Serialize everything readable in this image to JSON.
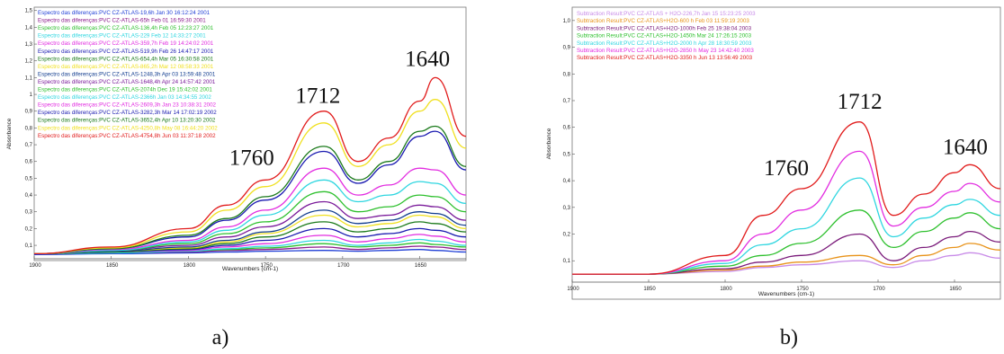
{
  "chart_data": [
    {
      "type": "line",
      "panel_label": "a)",
      "xlabel": "Wavenumbers (cm-1)",
      "ylabel": "Absorbance",
      "xlim": [
        1900,
        1620
      ],
      "ylim": [
        0.02,
        1.52
      ],
      "x_reversed": true,
      "xticks": [
        1900,
        1850,
        1800,
        1750,
        1700,
        1650
      ],
      "xtick_labels": [
        "1900",
        "1850",
        "1800",
        "1750",
        "1700",
        "1650"
      ],
      "yticks": [
        0.1,
        0.2,
        0.3,
        0.4,
        0.5,
        0.6,
        0.7,
        0.8,
        0.9,
        1.0,
        1.1,
        1.2,
        1.3,
        1.4,
        1.5
      ],
      "ytick_labels": [
        "0,1",
        "0,2",
        "0,3",
        "0,4",
        "0,5",
        "0,6",
        "0,7",
        "0,8",
        "0,9",
        "1",
        "1,1",
        "1,2",
        "1,3",
        "1,4",
        "1,5"
      ],
      "annotations": [
        {
          "text": "1760",
          "x": 1759,
          "y": 0.58
        },
        {
          "text": "1712",
          "x": 1716,
          "y": 0.95
        },
        {
          "text": "1640",
          "x": 1645,
          "y": 1.17
        }
      ],
      "series": [
        {
          "name": "Espectro das diferenças:PVC CZ-ATLAS-19,6h Jan 30 16:12:24 2001",
          "color": "#1f3fd6",
          "values": [
            0.045,
            0.05,
            0.055,
            0.06,
            0.065,
            0.07,
            0.065,
            0.07,
            0.075,
            0.07,
            0.06
          ]
        },
        {
          "name": "Espectro das diferenças:PVC CZ-ATLAS-65h  Feb 01 16:59:30 2001",
          "color": "#8b1a8b",
          "values": [
            0.05,
            0.055,
            0.06,
            0.07,
            0.075,
            0.09,
            0.075,
            0.085,
            0.095,
            0.09,
            0.075
          ]
        },
        {
          "name": "Espectro das diferenças:PVC CZ-ATLAS-136,4h  Feb 05 12:23:27 2001",
          "color": "#2ec02e",
          "values": [
            0.05,
            0.055,
            0.065,
            0.075,
            0.085,
            0.11,
            0.09,
            0.1,
            0.115,
            0.105,
            0.09
          ]
        },
        {
          "name": "Espectro das diferenças:PVC CZ-ATLAS-229 Feb 12 14:33:27 2001",
          "color": "#2fd6e0",
          "values": [
            0.05,
            0.055,
            0.065,
            0.08,
            0.095,
            0.13,
            0.1,
            0.115,
            0.135,
            0.125,
            0.1
          ]
        },
        {
          "name": "Espectro das diferenças:PVC CZ-ATLAS-359,7h Feb 19 14:24:02 2001",
          "color": "#e22ce0",
          "values": [
            0.05,
            0.06,
            0.07,
            0.09,
            0.11,
            0.16,
            0.12,
            0.14,
            0.165,
            0.155,
            0.12
          ]
        },
        {
          "name": "Espectro das diferenças:PVC CZ-ATLAS-519,9h Feb 26 14:47:17 2001",
          "color": "#1a1ab0",
          "values": [
            0.05,
            0.06,
            0.075,
            0.1,
            0.13,
            0.2,
            0.15,
            0.17,
            0.2,
            0.19,
            0.15
          ]
        },
        {
          "name": "Espectro das diferenças:PVC CZ-ATLAS-654,4h Mar 05 16:30:58 2001",
          "color": "#1b7a1b",
          "values": [
            0.05,
            0.06,
            0.08,
            0.11,
            0.15,
            0.24,
            0.18,
            0.2,
            0.24,
            0.23,
            0.18
          ]
        },
        {
          "name": "Espectro das diferenças:PVC CZ-ATLAS-865,2h Mar 12 08:58:33 2001",
          "color": "#f0e020",
          "values": [
            0.05,
            0.065,
            0.085,
            0.12,
            0.17,
            0.28,
            0.21,
            0.23,
            0.28,
            0.27,
            0.2
          ]
        },
        {
          "name": "Espectro das diferenças:PVC CZ-ATLAS-1248,3h  Apr 03 13:59:48 2001",
          "color": "#123d8f",
          "values": [
            0.05,
            0.065,
            0.09,
            0.13,
            0.18,
            0.31,
            0.23,
            0.25,
            0.3,
            0.29,
            0.22
          ]
        },
        {
          "name": "Espectro das diferenças:PVC CZ-ATLAS-1648,4h  Apr 24 14:57:42 2001",
          "color": "#7a1a9a",
          "values": [
            0.05,
            0.07,
            0.1,
            0.15,
            0.21,
            0.36,
            0.26,
            0.28,
            0.34,
            0.33,
            0.25
          ]
        },
        {
          "name": "Espectro das diferenças:PVC CZ-ATLAS-2074h  Dec 19 15:42:02 2001",
          "color": "#2ec02e",
          "values": [
            0.05,
            0.07,
            0.11,
            0.17,
            0.24,
            0.42,
            0.3,
            0.33,
            0.4,
            0.39,
            0.3
          ]
        },
        {
          "name": "Espectro das diferenças:PVC CZ-ATLAS-2366h  Jan 03 14:34:55 2002",
          "color": "#2fd6e0",
          "values": [
            0.05,
            0.07,
            0.12,
            0.19,
            0.28,
            0.49,
            0.36,
            0.4,
            0.48,
            0.47,
            0.35
          ]
        },
        {
          "name": "Espectro das diferenças:PVC CZ-ATLAS-2609,3h Jan 23 10:38:31 2002",
          "color": "#e22ce0",
          "values": [
            0.05,
            0.075,
            0.13,
            0.21,
            0.31,
            0.56,
            0.4,
            0.46,
            0.56,
            0.55,
            0.4
          ]
        },
        {
          "name": "Espectro das diferenças:PVC CZ-ATLAS-3282,3h  Mar 14 17:02:19 2002",
          "color": "#1a1ab0",
          "values": [
            0.05,
            0.08,
            0.15,
            0.25,
            0.37,
            0.66,
            0.47,
            0.58,
            0.75,
            0.78,
            0.55
          ]
        },
        {
          "name": "Espectro das diferenças:PVC CZ-ATLAS-3652,4h  Apr 10 13:20:30 2002",
          "color": "#1b7a1b",
          "values": [
            0.05,
            0.08,
            0.16,
            0.26,
            0.39,
            0.69,
            0.49,
            0.6,
            0.78,
            0.81,
            0.57
          ]
        },
        {
          "name": "Espectro das diferenças:PVC CZ-ATLAS-4250,8h  May 08 16:44:20 2002",
          "color": "#f0e020",
          "values": [
            0.05,
            0.085,
            0.18,
            0.31,
            0.45,
            0.83,
            0.57,
            0.7,
            0.9,
            0.97,
            0.68
          ]
        },
        {
          "name": "Espectro das diferenças:PVC CZ-ATLAS-4754,8h  Jun 03 11:37:18 2002",
          "color": "#e11b1b",
          "values": [
            0.05,
            0.09,
            0.2,
            0.34,
            0.49,
            0.9,
            0.6,
            0.74,
            0.96,
            1.1,
            0.75
          ]
        }
      ],
      "x": [
        1900,
        1850,
        1800,
        1775,
        1750,
        1712,
        1690,
        1670,
        1650,
        1640,
        1620
      ]
    },
    {
      "type": "line",
      "panel_label": "b)",
      "xlabel": "Wavenumbers (cm-1)",
      "ylabel": "Absorbance",
      "xlim": [
        1900,
        1620
      ],
      "ylim": [
        0.02,
        1.05
      ],
      "x_reversed": true,
      "xticks": [
        1900,
        1850,
        1800,
        1750,
        1700,
        1650
      ],
      "xtick_labels": [
        "1900",
        "1850",
        "1800",
        "1750",
        "1700",
        "1650"
      ],
      "yticks": [
        0.1,
        0.2,
        0.3,
        0.4,
        0.5,
        0.6,
        0.7,
        0.8,
        0.9,
        1.0
      ],
      "ytick_labels": [
        "0,1",
        "0,2",
        "0,3",
        "0,4",
        "0,5",
        "0,6",
        "0,7",
        "0,8",
        "0,9",
        "1,0"
      ],
      "annotations": [
        {
          "text": "1760",
          "x": 1760,
          "y": 0.42
        },
        {
          "text": "1712",
          "x": 1712,
          "y": 0.67
        },
        {
          "text": "1640",
          "x": 1643,
          "y": 0.5
        }
      ],
      "series": [
        {
          "name": "Subtraction Result:PVC CZ-ATLAS + H2O-226,7h  Jan 15 15:23:25 2003",
          "color": "#c88be8",
          "values": [
            0.05,
            0.05,
            0.06,
            0.075,
            0.085,
            0.1,
            0.075,
            0.1,
            0.12,
            0.13,
            0.11
          ]
        },
        {
          "name": "Subtraction Result:PVC CZ-ATLAS+H2O-600 h  Feb 03 11:59:19 2003",
          "color": "#e8931a",
          "values": [
            0.05,
            0.05,
            0.065,
            0.08,
            0.095,
            0.12,
            0.085,
            0.12,
            0.15,
            0.165,
            0.14
          ]
        },
        {
          "name": "Subtraction Result:PVC CZ-ATLAS+H2O-1000h  Feb 25 19:38:04 2003",
          "color": "#7a1a7a",
          "values": [
            0.05,
            0.05,
            0.07,
            0.095,
            0.12,
            0.2,
            0.1,
            0.15,
            0.19,
            0.21,
            0.17
          ]
        },
        {
          "name": "Subtraction Result:PVC CZ-ATLAS+H2O-1450h  Mar 24 17:26:15 2003",
          "color": "#2ec02e",
          "values": [
            0.05,
            0.05,
            0.08,
            0.12,
            0.165,
            0.29,
            0.15,
            0.21,
            0.26,
            0.28,
            0.22
          ]
        },
        {
          "name": "Subtraction Result:PVC CZ-ATLAS+H2O-2000 h  Apr 28 18:30:59 2003",
          "color": "#2fd6e0",
          "values": [
            0.05,
            0.05,
            0.09,
            0.16,
            0.22,
            0.41,
            0.19,
            0.26,
            0.31,
            0.33,
            0.27
          ]
        },
        {
          "name": "Subtraction Result:PVC CZ-ATLAS+H2O-2850 h  May 23 14:42:40 2003",
          "color": "#e22ce0",
          "values": [
            0.05,
            0.05,
            0.1,
            0.2,
            0.29,
            0.51,
            0.23,
            0.3,
            0.36,
            0.39,
            0.32
          ]
        },
        {
          "name": "Subtraction Result:PVC CZ-ATLAS+H2O-3350 h  Jun 13 13:56:49 2003",
          "color": "#e11b1b",
          "values": [
            0.05,
            0.05,
            0.12,
            0.27,
            0.37,
            0.62,
            0.27,
            0.35,
            0.43,
            0.46,
            0.37
          ]
        }
      ],
      "x": [
        1900,
        1850,
        1800,
        1775,
        1750,
        1712,
        1690,
        1670,
        1650,
        1640,
        1620
      ]
    }
  ]
}
